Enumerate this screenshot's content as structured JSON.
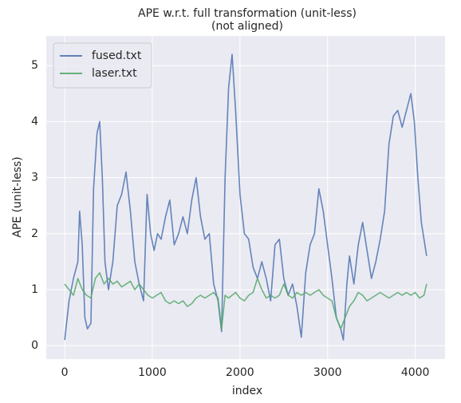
{
  "chart_data": {
    "type": "line",
    "title": "APE w.r.t. full transformation (unit-less)",
    "subtitle": "(not aligned)",
    "xlabel": "index",
    "ylabel": "APE (unit-less)",
    "xlim": [
      -210,
      4340
    ],
    "ylim": [
      -0.24,
      5.53
    ],
    "xticks": [
      0,
      1000,
      2000,
      3000,
      4000
    ],
    "yticks": [
      0,
      1,
      2,
      3,
      4,
      5
    ],
    "grid": true,
    "legend": "upper left",
    "series": [
      {
        "name": "fused.txt",
        "color": "#4c72b0",
        "x": [
          0,
          50,
          100,
          150,
          170,
          200,
          230,
          260,
          300,
          330,
          370,
          400,
          430,
          460,
          500,
          550,
          600,
          650,
          700,
          750,
          800,
          850,
          900,
          940,
          980,
          1020,
          1060,
          1100,
          1150,
          1200,
          1250,
          1300,
          1350,
          1400,
          1450,
          1500,
          1550,
          1600,
          1650,
          1700,
          1750,
          1790,
          1830,
          1870,
          1910,
          1950,
          2000,
          2050,
          2100,
          2150,
          2200,
          2250,
          2300,
          2350,
          2400,
          2450,
          2500,
          2550,
          2600,
          2650,
          2700,
          2750,
          2800,
          2850,
          2900,
          2950,
          3000,
          3050,
          3100,
          3150,
          3180,
          3220,
          3250,
          3300,
          3350,
          3400,
          3450,
          3500,
          3550,
          3600,
          3650,
          3700,
          3750,
          3800,
          3850,
          3900,
          3950,
          3990,
          4030,
          4070,
          4100,
          4130
        ],
        "values": [
          0.1,
          0.8,
          1.2,
          1.5,
          2.4,
          1.8,
          0.5,
          0.3,
          0.4,
          2.8,
          3.8,
          4.0,
          3.0,
          1.5,
          1.0,
          1.5,
          2.5,
          2.7,
          3.1,
          2.4,
          1.5,
          1.1,
          0.8,
          2.7,
          2.0,
          1.7,
          2.0,
          1.9,
          2.3,
          2.6,
          1.8,
          2.0,
          2.3,
          2.0,
          2.6,
          3.0,
          2.3,
          1.9,
          2.0,
          1.1,
          0.8,
          0.25,
          3.0,
          4.6,
          5.2,
          4.2,
          2.7,
          2.0,
          1.9,
          1.4,
          1.2,
          1.5,
          1.2,
          0.8,
          1.8,
          1.9,
          1.2,
          0.9,
          1.1,
          0.7,
          0.15,
          1.3,
          1.8,
          2.0,
          2.8,
          2.4,
          1.8,
          1.2,
          0.5,
          0.3,
          0.1,
          1.1,
          1.6,
          1.1,
          1.8,
          2.2,
          1.7,
          1.2,
          1.5,
          1.9,
          2.4,
          3.6,
          4.1,
          4.2,
          3.9,
          4.2,
          4.5,
          4.0,
          3.0,
          2.2,
          1.9,
          1.6
        ]
      },
      {
        "name": "laser.txt",
        "color": "#55a868",
        "x": [
          0,
          50,
          100,
          150,
          200,
          250,
          300,
          350,
          400,
          450,
          500,
          550,
          600,
          650,
          700,
          750,
          800,
          850,
          900,
          950,
          1000,
          1050,
          1100,
          1150,
          1200,
          1250,
          1300,
          1350,
          1400,
          1450,
          1500,
          1550,
          1600,
          1650,
          1700,
          1750,
          1790,
          1830,
          1870,
          1910,
          1950,
          2000,
          2050,
          2100,
          2150,
          2200,
          2250,
          2300,
          2350,
          2400,
          2450,
          2500,
          2550,
          2600,
          2650,
          2700,
          2750,
          2800,
          2850,
          2900,
          2950,
          3000,
          3050,
          3100,
          3150,
          3200,
          3250,
          3300,
          3350,
          3400,
          3450,
          3500,
          3550,
          3600,
          3650,
          3700,
          3750,
          3800,
          3850,
          3900,
          3950,
          4000,
          4050,
          4100,
          4130
        ],
        "values": [
          1.1,
          1.0,
          0.9,
          1.2,
          1.0,
          0.9,
          0.85,
          1.2,
          1.3,
          1.1,
          1.2,
          1.1,
          1.15,
          1.05,
          1.1,
          1.15,
          1.0,
          1.1,
          1.0,
          0.9,
          0.85,
          0.9,
          0.95,
          0.8,
          0.75,
          0.8,
          0.75,
          0.8,
          0.7,
          0.75,
          0.85,
          0.9,
          0.85,
          0.9,
          0.95,
          0.85,
          0.3,
          0.9,
          0.85,
          0.9,
          0.95,
          0.85,
          0.8,
          0.9,
          0.95,
          1.2,
          1.0,
          0.85,
          0.9,
          0.85,
          0.9,
          1.1,
          0.9,
          0.85,
          0.95,
          0.9,
          0.95,
          0.9,
          0.95,
          1.0,
          0.9,
          0.85,
          0.8,
          0.5,
          0.3,
          0.5,
          0.7,
          0.8,
          0.95,
          0.9,
          0.8,
          0.85,
          0.9,
          0.95,
          0.9,
          0.85,
          0.9,
          0.95,
          0.9,
          0.95,
          0.9,
          0.95,
          0.85,
          0.9,
          1.1
        ]
      }
    ]
  }
}
